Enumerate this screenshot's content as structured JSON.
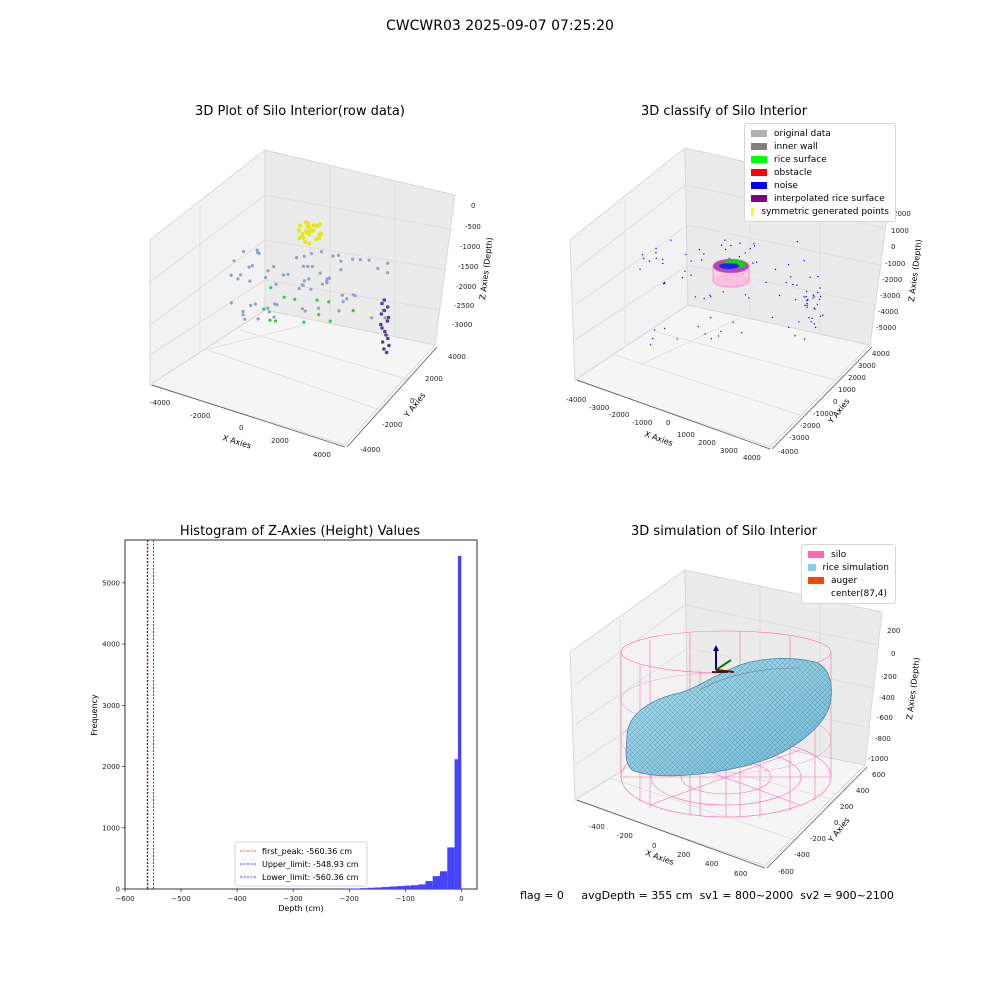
{
  "suptitle": "CWCWR03 2025-09-07 07:25:20",
  "chart_data": [
    {
      "type": "scatter",
      "title": "3D Plot of Silo Interior(row data)",
      "projection": "3d",
      "xlabel": "X Axies",
      "ylabel": "Y Axies",
      "zlabel": "Z Axies (Depth)",
      "xticks": [
        "-4000",
        "-2000",
        "0",
        "2000",
        "4000"
      ],
      "yticks": [
        "-4000",
        "-2000",
        "0",
        "2000",
        "4000"
      ],
      "zticks": [
        "0",
        "-500",
        "-1000",
        "-1500",
        "-2000",
        "-2500",
        "-3000"
      ],
      "zlim": [
        -3300,
        0
      ],
      "colormap": "viridis (by depth)"
    },
    {
      "type": "scatter",
      "title": "3D classify of Silo Interior",
      "projection": "3d",
      "xlabel": "X Axies",
      "ylabel": "Y Axies",
      "zlabel": "Z Axies (Depth)",
      "xticks": [
        "-4000",
        "-3000",
        "-2000",
        "-1000",
        "0",
        "1000",
        "2000",
        "3000",
        "4000"
      ],
      "yticks": [
        "-4000",
        "-3000",
        "-2000",
        "-1000",
        "0",
        "1000",
        "2000",
        "3000",
        "4000"
      ],
      "zticks": [
        "2000",
        "1000",
        "0",
        "-1000",
        "-2000",
        "-3000",
        "-4000",
        "-5000"
      ],
      "legend": [
        {
          "label": "original data",
          "color": "#b0b0b0"
        },
        {
          "label": "inner wall",
          "color": "#808080"
        },
        {
          "label": "rice surface",
          "color": "#00ff00"
        },
        {
          "label": "obstacle",
          "color": "#ff0000"
        },
        {
          "label": "noise",
          "color": "#0000ff"
        },
        {
          "label": "interpolated rice surface",
          "color": "#800080"
        },
        {
          "label": "symmetric generated points",
          "color": "#ffff00"
        }
      ],
      "legend_position": "upper right"
    },
    {
      "type": "bar",
      "title": "Histogram of Z-Axies (Height) Values",
      "xlabel": "Depth (cm)",
      "ylabel": "Frequency",
      "xlim": [
        -600,
        28
      ],
      "ylim": [
        0,
        5700
      ],
      "xticks": [
        -600,
        -500,
        -400,
        -300,
        -200,
        -100,
        0
      ],
      "yticks": [
        0,
        1000,
        2000,
        3000,
        4000,
        5000
      ],
      "bar_color": "#4444ff",
      "bins": [
        {
          "left": -290,
          "right": -277,
          "value": 5
        },
        {
          "left": -220,
          "right": -207,
          "value": 4
        },
        {
          "left": -207,
          "right": -194,
          "value": 6
        },
        {
          "left": -194,
          "right": -181,
          "value": 8
        },
        {
          "left": -181,
          "right": -168,
          "value": 14
        },
        {
          "left": -168,
          "right": -155,
          "value": 20
        },
        {
          "left": -155,
          "right": -142,
          "value": 25
        },
        {
          "left": -142,
          "right": -129,
          "value": 32
        },
        {
          "left": -129,
          "right": -116,
          "value": 40
        },
        {
          "left": -116,
          "right": -103,
          "value": 48
        },
        {
          "left": -103,
          "right": -90,
          "value": 55
        },
        {
          "left": -90,
          "right": -77,
          "value": 62
        },
        {
          "left": -77,
          "right": -64,
          "value": 75
        },
        {
          "left": -64,
          "right": -51,
          "value": 130
        },
        {
          "left": -51,
          "right": -38,
          "value": 210
        },
        {
          "left": -38,
          "right": -25,
          "value": 290
        },
        {
          "left": -25,
          "right": -12,
          "value": 680
        },
        {
          "left": -12,
          "right": -6,
          "value": 2120
        },
        {
          "left": -6,
          "right": 0,
          "value": 5440
        }
      ],
      "vlines": [
        {
          "label": "first_peak: -560.36 cm",
          "x": -560.36,
          "color": "#ff0000"
        },
        {
          "label": "Upper_limit: -548.93 cm",
          "x": -548.93,
          "color": "#0000ff"
        },
        {
          "label": "Lower_limit: -560.36 cm",
          "x": -560.36,
          "color": "#0000ff"
        }
      ],
      "legend_position": "lower center"
    },
    {
      "type": "surface",
      "title": "3D simulation of Silo Interior",
      "projection": "3d",
      "xlabel": "X Axies",
      "ylabel": "Y Axies",
      "zlabel": "Z Axies (Depth)",
      "xticks": [
        "-400",
        "-200",
        "0",
        "200",
        "400",
        "600"
      ],
      "yticks": [
        "-600",
        "-400",
        "-200",
        "0",
        "200",
        "400",
        "600"
      ],
      "zticks": [
        "200",
        "0",
        "-200",
        "-400",
        "-600",
        "-800",
        "-1000"
      ],
      "legend": [
        {
          "label": "silo",
          "color": "#ff69b4"
        },
        {
          "label": "rice simulation",
          "color": "#87ceeb"
        },
        {
          "label": "auger",
          "color": "#ff4500"
        },
        {
          "label": "center(87,4)",
          "color": ""
        }
      ],
      "legend_position": "upper right"
    }
  ],
  "footer": {
    "flag": "flag = 0",
    "avg": "avgDepth = 355 cm",
    "sv1": "sv1 = 800~2000",
    "sv2": "sv2 = 900~2100"
  }
}
